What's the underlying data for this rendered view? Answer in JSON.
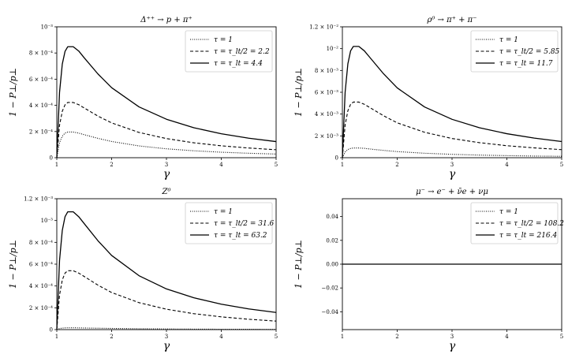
{
  "chart_data": [
    {
      "type": "line",
      "title": "Δ⁺⁺ → p + π⁺",
      "xlabel": "γ",
      "ylabel": "1 − P⊥/p⊥",
      "xlim": [
        1,
        5
      ],
      "ylim": [
        0,
        0.001
      ],
      "x_ticks": [
        1,
        2,
        3,
        4,
        5
      ],
      "y_ticks": [
        0,
        0.0002,
        0.0004,
        0.0006,
        0.0008,
        0.001
      ],
      "y_tick_labels": [
        "0",
        "2 × 10⁻⁴",
        "4 × 10⁻⁴",
        "6 × 10⁻⁴",
        "8 × 10⁻⁴",
        "10⁻³"
      ],
      "legend_position": "top-right",
      "grid": false,
      "x": [
        1,
        1.05,
        1.1,
        1.15,
        1.2,
        1.3,
        1.4,
        1.5,
        1.75,
        2,
        2.5,
        3,
        3.5,
        4,
        4.5,
        5
      ],
      "series": [
        {
          "name": "τ = 1",
          "style": "dotted",
          "values": [
            0,
            0.000115,
            0.000165,
            0.000188,
            0.000196,
            0.000196,
            0.000188,
            0.000176,
            0.000148,
            0.000124,
            9e-05,
            6.8e-05,
            5.3e-05,
            4.2e-05,
            3.4e-05,
            2.8e-05
          ]
        },
        {
          "name": "τ = τ_lt/2 = 2.2",
          "style": "dashed",
          "values": [
            0,
            0.000248,
            0.000355,
            0.000404,
            0.000422,
            0.000422,
            0.000405,
            0.00038,
            0.000318,
            0.000266,
            0.000193,
            0.000146,
            0.000114,
            9.1e-05,
            7.4e-05,
            6.1e-05
          ]
        },
        {
          "name": "τ = τ_lt = 4.4",
          "style": "solid",
          "values": [
            0,
            0.0005,
            0.000715,
            0.000812,
            0.000848,
            0.000848,
            0.000815,
            0.000763,
            0.00064,
            0.000535,
            0.000388,
            0.000294,
            0.000229,
            0.000183,
            0.000149,
            0.000123
          ]
        }
      ]
    },
    {
      "type": "line",
      "title": "ρ⁰ → π⁺ + π⁻",
      "xlabel": "γ",
      "ylabel": "1 − P⊥/p⊥",
      "xlim": [
        1,
        5
      ],
      "ylim": [
        0,
        0.012
      ],
      "x_ticks": [
        1,
        2,
        3,
        4,
        5
      ],
      "y_ticks": [
        0,
        0.002,
        0.004,
        0.006,
        0.008,
        0.01,
        0.012
      ],
      "y_tick_labels": [
        "0",
        "2 × 10⁻³",
        "4 × 10⁻³",
        "6 × 10⁻³",
        "8 × 10⁻³",
        "10⁻²",
        "1.2 × 10⁻²"
      ],
      "legend_position": "top-right",
      "grid": false,
      "x": [
        1,
        1.05,
        1.1,
        1.15,
        1.2,
        1.3,
        1.4,
        1.5,
        1.75,
        2,
        2.5,
        3,
        3.5,
        4,
        4.5,
        5
      ],
      "series": [
        {
          "name": "τ = 1",
          "style": "dotted",
          "values": [
            0,
            0.00052,
            0.00075,
            0.00085,
            0.00089,
            0.00089,
            0.00086,
            0.0008,
            0.00067,
            0.00056,
            0.00041,
            0.00031,
            0.00024,
            0.00019,
            0.00015,
            0.00013
          ]
        },
        {
          "name": "τ = τ_lt/2 = 5.85",
          "style": "dashed",
          "values": [
            0,
            0.003,
            0.0043,
            0.0049,
            0.0051,
            0.0051,
            0.0049,
            0.0046,
            0.00385,
            0.0032,
            0.00233,
            0.00176,
            0.00138,
            0.0011,
            0.0009,
            0.00074
          ]
        },
        {
          "name": "τ = τ_lt = 11.7",
          "style": "solid",
          "values": [
            0,
            0.006,
            0.0086,
            0.0098,
            0.0102,
            0.0102,
            0.0098,
            0.0092,
            0.0077,
            0.0064,
            0.00465,
            0.00352,
            0.00275,
            0.0022,
            0.0018,
            0.00148
          ]
        }
      ]
    },
    {
      "type": "line",
      "title": "Z⁰",
      "xlabel": "γ",
      "ylabel": "1 − P⊥/p⊥",
      "xlim": [
        1,
        5
      ],
      "ylim": [
        0,
        0.0012
      ],
      "x_ticks": [
        1,
        2,
        3,
        4,
        5
      ],
      "y_ticks": [
        0,
        0.0002,
        0.0004,
        0.0006,
        0.0008,
        0.001,
        0.0012
      ],
      "y_tick_labels": [
        "0",
        "2 × 10⁻⁴",
        "4 × 10⁻⁴",
        "6 × 10⁻⁴",
        "8 × 10⁻⁴",
        "10⁻³",
        "1.2 × 10⁻³"
      ],
      "legend_position": "top-right",
      "grid": false,
      "x": [
        1,
        1.05,
        1.1,
        1.15,
        1.2,
        1.3,
        1.4,
        1.5,
        1.75,
        2,
        2.5,
        3,
        3.5,
        4,
        4.5,
        5
      ],
      "series": [
        {
          "name": "τ = 1",
          "style": "dotted",
          "values": [
            0,
            1e-05,
            1.4e-05,
            1.6e-05,
            1.7e-05,
            1.7e-05,
            1.6e-05,
            1.5e-05,
            1.3e-05,
            1.1e-05,
            8e-06,
            6e-06,
            4.5e-06,
            3.5e-06,
            3e-06,
            2.5e-06
          ]
        },
        {
          "name": "τ = τ_lt/2 = 31.6",
          "style": "dashed",
          "values": [
            0,
            0.000317,
            0.000455,
            0.000518,
            0.00054,
            0.00054,
            0.000518,
            0.000487,
            0.000408,
            0.00034,
            0.000247,
            0.000187,
            0.000146,
            0.000117,
            9.5e-05,
            7.8e-05
          ]
        },
        {
          "name": "τ = τ_lt = 63.2",
          "style": "solid",
          "values": [
            0,
            0.000635,
            0.000909,
            0.001035,
            0.00108,
            0.00108,
            0.001035,
            0.000972,
            0.000815,
            0.00068,
            0.000494,
            0.000373,
            0.000292,
            0.000233,
            0.00019,
            0.000157
          ]
        }
      ]
    },
    {
      "type": "line",
      "title": "μ⁻ → e⁻ + ν̄e + νμ",
      "xlabel": "γ",
      "ylabel": "1 − P⊥/p⊥",
      "xlim": [
        1,
        5
      ],
      "ylim": [
        -0.055,
        0.055
      ],
      "x_ticks": [
        1,
        2,
        3,
        4,
        5
      ],
      "y_ticks": [
        -0.04,
        -0.02,
        0,
        0.02,
        0.04
      ],
      "y_tick_labels": [
        "−0.04",
        "−0.02",
        "0.00",
        "0.02",
        "0.04"
      ],
      "legend_position": "top-right",
      "grid": false,
      "x": [
        1,
        2,
        3,
        4,
        5
      ],
      "series": [
        {
          "name": "τ = 1",
          "style": "dotted",
          "values": [
            0,
            0,
            0,
            0,
            0
          ]
        },
        {
          "name": "τ = τ_lt/2 = 108.2",
          "style": "dashed",
          "values": [
            0,
            0,
            0,
            0,
            0
          ]
        },
        {
          "name": "τ = τ_lt = 216.4",
          "style": "solid",
          "values": [
            0,
            0,
            0,
            0,
            0
          ]
        }
      ]
    }
  ]
}
